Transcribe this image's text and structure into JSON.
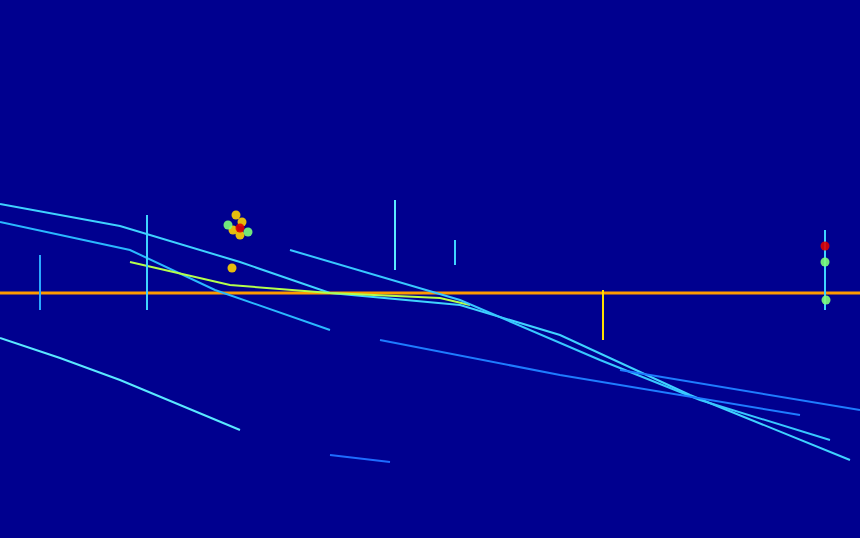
{
  "chart_data": {
    "type": "line",
    "xlim": [
      0,
      860
    ],
    "ylim": [
      538,
      0
    ],
    "tick_labels": false,
    "grid": false,
    "series": [
      {
        "type": "line",
        "color": "#ff9a00",
        "x": [
          0,
          860
        ],
        "values": [
          293,
          293
        ]
      },
      {
        "type": "line",
        "color": "#3fd2ff",
        "x": [
          0,
          120,
          240,
          330,
          460,
          560,
          690,
          850
        ],
        "values": [
          204,
          226,
          262,
          293,
          305,
          335,
          395,
          460
        ]
      },
      {
        "type": "line",
        "color": "#2ab8ff",
        "x": [
          0,
          130,
          215,
          330
        ],
        "values": [
          222,
          250,
          290,
          330
        ]
      },
      {
        "type": "line",
        "color": "#b4ff4c",
        "x": [
          130,
          230,
          330,
          440,
          470
        ],
        "values": [
          262,
          285,
          293,
          298,
          305
        ]
      },
      {
        "type": "line",
        "color": "#38c8ff",
        "x": [
          290,
          460,
          600,
          700,
          830
        ],
        "values": [
          250,
          300,
          360,
          400,
          440
        ]
      },
      {
        "type": "line",
        "color": "#5ae8ff",
        "x": [
          0,
          60,
          120,
          180,
          240
        ],
        "values": [
          338,
          358,
          380,
          405,
          430
        ]
      },
      {
        "type": "line",
        "color": "#1e7cff",
        "x": [
          380,
          560,
          800
        ],
        "values": [
          340,
          375,
          415
        ]
      },
      {
        "type": "line",
        "color": "#1e7cff",
        "x": [
          620,
          860
        ],
        "values": [
          370,
          410
        ]
      },
      {
        "type": "line",
        "color": "#1e6cff",
        "x": [
          330,
          390
        ],
        "values": [
          455,
          462
        ]
      },
      {
        "type": "line",
        "color": "#2aa8ff",
        "x": [
          40,
          40
        ],
        "values": [
          255,
          310
        ]
      },
      {
        "type": "line",
        "color": "#3fd2ff",
        "x": [
          147,
          147
        ],
        "values": [
          215,
          310
        ]
      },
      {
        "type": "line",
        "color": "#5ae8ff",
        "x": [
          395,
          395
        ],
        "values": [
          200,
          270
        ]
      },
      {
        "type": "line",
        "color": "#3fd2ff",
        "x": [
          455,
          455
        ],
        "values": [
          240,
          265
        ]
      },
      {
        "type": "line",
        "color": "#ffe000",
        "x": [
          603,
          603
        ],
        "values": [
          290,
          340
        ]
      },
      {
        "type": "line",
        "color": "#3fd2ff",
        "x": [
          825,
          825
        ],
        "values": [
          230,
          310
        ]
      },
      {
        "type": "scatter",
        "marker": "circle",
        "color": "#ffd000",
        "x": [
          236,
          242,
          233,
          240,
          232
        ],
        "values": [
          215,
          222,
          230,
          235,
          268
        ]
      },
      {
        "type": "scatter",
        "marker": "circle",
        "color": "#e00000",
        "x": [
          240,
          825
        ],
        "values": [
          228,
          246
        ]
      },
      {
        "type": "scatter",
        "marker": "circle",
        "color": "#7dff7a",
        "x": [
          228,
          248,
          825,
          826
        ],
        "values": [
          225,
          232,
          262,
          300
        ]
      }
    ]
  }
}
